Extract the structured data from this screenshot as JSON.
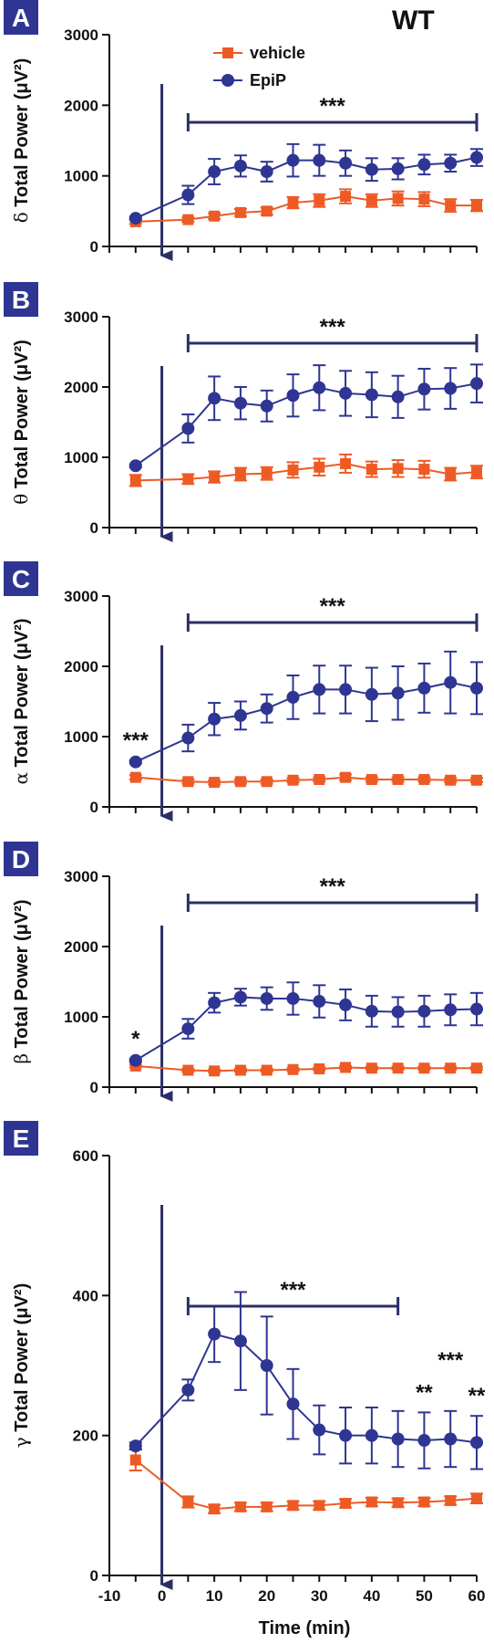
{
  "figure": {
    "corner_label": "WT",
    "xlabel": "Time (min)",
    "x_ticks": [
      -10,
      -5,
      0,
      5,
      10,
      15,
      20,
      25,
      30,
      35,
      40,
      45,
      50,
      55,
      60
    ],
    "x_tick_labels": [
      "-10",
      "0",
      "10",
      "20",
      "30",
      "40",
      "50",
      "60"
    ],
    "x_tick_label_values": [
      -10,
      0,
      10,
      20,
      30,
      40,
      50,
      60
    ],
    "legend": {
      "vehicle": "vehicle",
      "epip": "EpiP"
    },
    "colors": {
      "vehicle": "#ee5a24",
      "epip": "#2e3592",
      "arrow": "#2b2e66",
      "bracket": "#2b2e66",
      "badge": "#2e3592"
    }
  },
  "chart_data": [
    {
      "panel": "A",
      "type": "line",
      "greek": "δ",
      "ylabel": "Total Power (μV²)",
      "ylim": [
        0,
        3000
      ],
      "yticks": [
        0,
        1000,
        2000,
        3000
      ],
      "x": [
        -5,
        5,
        10,
        15,
        20,
        25,
        30,
        35,
        40,
        45,
        50,
        55,
        60
      ],
      "series": [
        {
          "name": "vehicle",
          "values": [
            350,
            380,
            430,
            480,
            500,
            620,
            650,
            710,
            650,
            680,
            670,
            580,
            580
          ],
          "errors": [
            30,
            30,
            40,
            50,
            50,
            80,
            90,
            100,
            90,
            100,
            100,
            90,
            80
          ]
        },
        {
          "name": "EpiP",
          "values": [
            400,
            730,
            1060,
            1140,
            1060,
            1220,
            1220,
            1180,
            1090,
            1100,
            1160,
            1180,
            1260
          ],
          "errors": [
            20,
            130,
            180,
            150,
            140,
            230,
            220,
            180,
            160,
            150,
            140,
            120,
            120
          ]
        }
      ],
      "annotations": [
        {
          "text": "***",
          "bracket": [
            5,
            60
          ]
        }
      ],
      "treatment_arrow_at": 0
    },
    {
      "panel": "B",
      "type": "line",
      "greek": "θ",
      "ylabel": "Total Power (μV²)",
      "ylim": [
        0,
        3000
      ],
      "yticks": [
        0,
        1000,
        2000,
        3000
      ],
      "x": [
        -5,
        5,
        10,
        15,
        20,
        25,
        30,
        35,
        40,
        45,
        50,
        55,
        60
      ],
      "series": [
        {
          "name": "vehicle",
          "values": [
            670,
            690,
            720,
            760,
            770,
            820,
            860,
            910,
            830,
            840,
            830,
            760,
            790
          ],
          "errors": [
            80,
            70,
            80,
            90,
            90,
            110,
            120,
            130,
            110,
            120,
            120,
            90,
            90
          ]
        },
        {
          "name": "EpiP",
          "values": [
            880,
            1410,
            1840,
            1770,
            1730,
            1880,
            1990,
            1910,
            1890,
            1860,
            1970,
            1980,
            2050
          ],
          "errors": [
            20,
            200,
            310,
            230,
            220,
            300,
            320,
            320,
            320,
            300,
            290,
            290,
            270
          ]
        }
      ],
      "annotations": [
        {
          "text": "***",
          "bracket": [
            5,
            60
          ]
        }
      ],
      "treatment_arrow_at": 0
    },
    {
      "panel": "C",
      "type": "line",
      "greek": "α",
      "ylabel": "Total Power (μV²)",
      "ylim": [
        0,
        3000
      ],
      "yticks": [
        0,
        1000,
        2000,
        3000
      ],
      "x": [
        -5,
        5,
        10,
        15,
        20,
        25,
        30,
        35,
        40,
        45,
        50,
        55,
        60
      ],
      "series": [
        {
          "name": "vehicle",
          "values": [
            420,
            360,
            350,
            360,
            360,
            380,
            390,
            420,
            390,
            390,
            390,
            380,
            380
          ],
          "errors": [
            30,
            30,
            30,
            30,
            30,
            30,
            30,
            40,
            30,
            30,
            30,
            30,
            30
          ]
        },
        {
          "name": "EpiP",
          "values": [
            640,
            980,
            1250,
            1300,
            1400,
            1560,
            1670,
            1670,
            1600,
            1620,
            1690,
            1770,
            1690
          ],
          "errors": [
            20,
            190,
            230,
            200,
            200,
            310,
            340,
            340,
            380,
            380,
            350,
            440,
            370
          ]
        }
      ],
      "annotations": [
        {
          "text": "***",
          "bracket": [
            5,
            60
          ]
        },
        {
          "text": "***",
          "at": -5
        }
      ],
      "treatment_arrow_at": 0
    },
    {
      "panel": "D",
      "type": "line",
      "greek": "β",
      "ylabel": "Total Power (μV²)",
      "ylim": [
        0,
        3000
      ],
      "yticks": [
        0,
        1000,
        2000,
        3000
      ],
      "x": [
        -5,
        5,
        10,
        15,
        20,
        25,
        30,
        35,
        40,
        45,
        50,
        55,
        60
      ],
      "series": [
        {
          "name": "vehicle",
          "values": [
            300,
            240,
            230,
            240,
            240,
            250,
            260,
            280,
            270,
            270,
            270,
            270,
            270
          ],
          "errors": [
            20,
            20,
            20,
            20,
            20,
            20,
            20,
            20,
            20,
            20,
            20,
            20,
            20
          ]
        },
        {
          "name": "EpiP",
          "values": [
            380,
            830,
            1200,
            1280,
            1260,
            1260,
            1220,
            1170,
            1080,
            1070,
            1080,
            1100,
            1110
          ],
          "errors": [
            20,
            140,
            140,
            120,
            160,
            230,
            230,
            220,
            220,
            210,
            220,
            220,
            230
          ]
        }
      ],
      "annotations": [
        {
          "text": "***",
          "bracket": [
            5,
            60
          ]
        },
        {
          "text": "*",
          "at": -5
        }
      ],
      "treatment_arrow_at": 0
    },
    {
      "panel": "E",
      "type": "line",
      "greek": "γ",
      "ylabel": "Total Power (μV²)",
      "ylim": [
        0,
        600
      ],
      "yticks": [
        0,
        200,
        400,
        600
      ],
      "x": [
        -5,
        5,
        10,
        15,
        20,
        25,
        30,
        35,
        40,
        45,
        50,
        55,
        60
      ],
      "series": [
        {
          "name": "vehicle",
          "values": [
            165,
            105,
            95,
            98,
            98,
            100,
            100,
            103,
            105,
            104,
            105,
            107,
            110
          ],
          "errors": [
            15,
            8,
            6,
            6,
            6,
            6,
            6,
            6,
            6,
            6,
            6,
            6,
            7
          ]
        },
        {
          "name": "EpiP",
          "values": [
            185,
            265,
            345,
            335,
            300,
            245,
            208,
            200,
            200,
            195,
            193,
            195,
            190
          ],
          "errors": [
            5,
            15,
            40,
            70,
            70,
            50,
            35,
            40,
            40,
            40,
            40,
            40,
            38
          ]
        }
      ],
      "annotations": [
        {
          "text": "***",
          "bracket": [
            5,
            45
          ]
        },
        {
          "text": "**",
          "at": 50
        },
        {
          "text": "***",
          "at": 55
        },
        {
          "text": "**",
          "at": 60
        }
      ],
      "treatment_arrow_at": 0
    }
  ]
}
